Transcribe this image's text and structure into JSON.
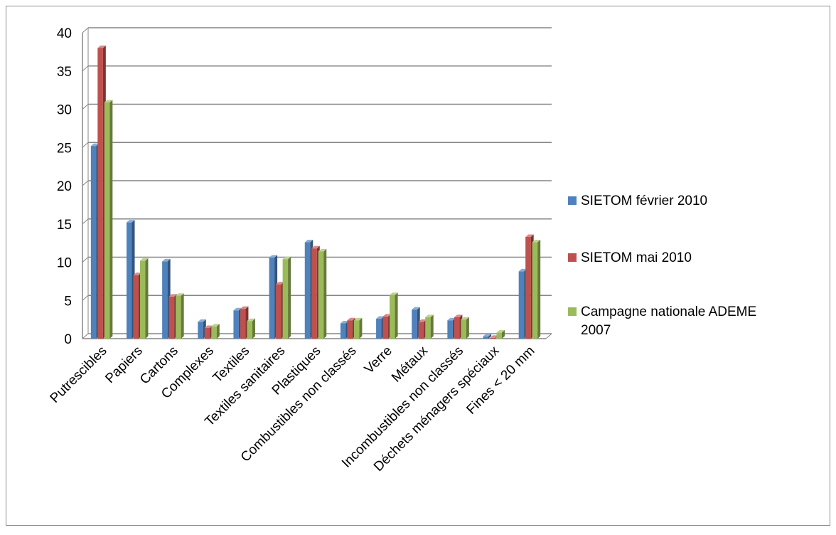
{
  "chart_data": {
    "type": "bar",
    "title": "",
    "xlabel": "",
    "ylabel": "",
    "ylim": [
      0,
      40
    ],
    "yticks": [
      "0",
      "5",
      "10",
      "15",
      "20",
      "25",
      "30",
      "35",
      "40"
    ],
    "grid": true,
    "legend_position": "right",
    "categories": [
      "Putrescibles",
      "Papiers",
      "Cartons",
      "Complexes",
      "Textiles",
      "Textiles sanitaires",
      "Plastiques",
      "Combustibles non classés",
      "Verre",
      "Métaux",
      "Incombustibles non classés",
      "Déchets ménagers spéciaux",
      "Fines < 20 mm"
    ],
    "series": [
      {
        "name": "SIETOM février 2010",
        "color": "#4F81BD",
        "values": [
          25.2,
          15.2,
          10.1,
          2.2,
          3.7,
          10.6,
          12.6,
          2.0,
          2.6,
          3.8,
          2.4,
          0.3,
          8.8
        ]
      },
      {
        "name": "SIETOM mai 2010",
        "color": "#C0504D",
        "values": [
          38.0,
          8.3,
          5.5,
          1.4,
          3.9,
          7.1,
          11.8,
          2.4,
          2.9,
          2.2,
          2.8,
          0.1,
          13.3
        ]
      },
      {
        "name": "Campagne nationale ADEME 2007",
        "legend_lines": [
          "Campagne nationale ADEME",
          "2007"
        ],
        "color": "#9BBB59",
        "values": [
          30.9,
          10.2,
          5.6,
          1.6,
          2.3,
          10.4,
          11.4,
          2.4,
          5.7,
          2.8,
          2.5,
          0.8,
          12.6
        ]
      }
    ]
  }
}
